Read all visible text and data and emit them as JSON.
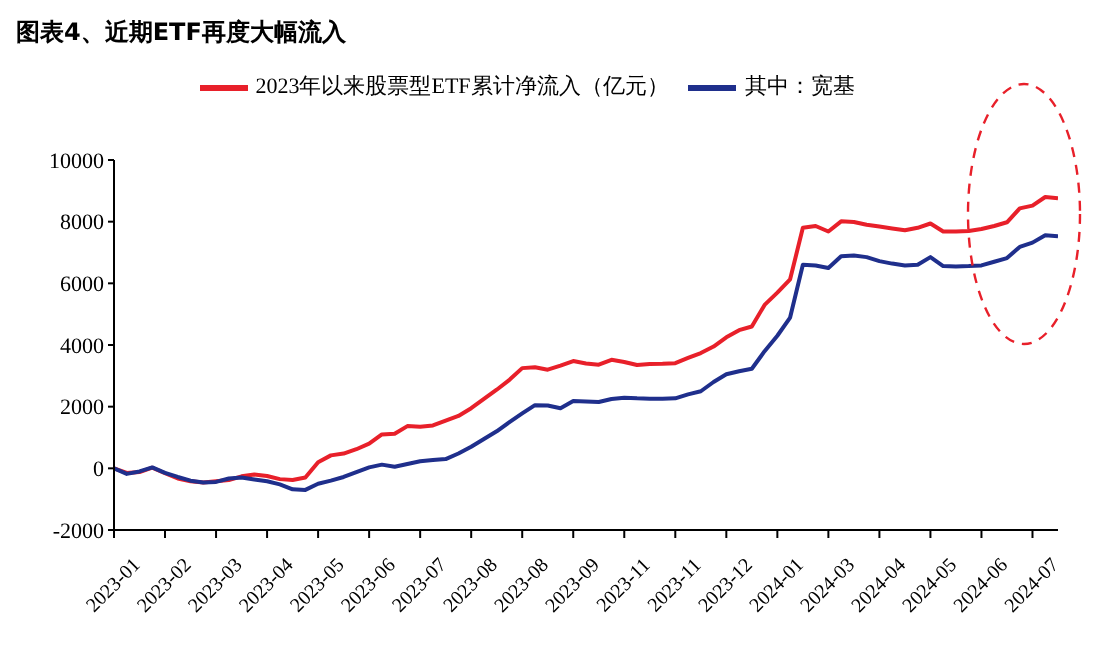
{
  "chart_data": {
    "type": "line",
    "title": "图表4、近期ETF再度大幅流入",
    "categories": [
      "2023-01",
      null,
      null,
      null,
      "2023-02",
      null,
      null,
      null,
      "2023-03",
      null,
      null,
      null,
      "2023-04",
      null,
      null,
      null,
      "2023-05",
      null,
      null,
      null,
      "2023-06",
      null,
      null,
      null,
      "2023-07",
      null,
      null,
      null,
      "2023-08",
      null,
      null,
      null,
      "2023-08",
      null,
      null,
      null,
      "2023-09",
      null,
      null,
      null,
      "2023-11",
      null,
      null,
      null,
      "2023-11",
      null,
      null,
      null,
      "2023-12",
      null,
      null,
      null,
      "2024-01",
      null,
      null,
      null,
      "2024-03",
      null,
      null,
      null,
      "2024-04",
      null,
      null,
      null,
      "2024-05",
      null,
      null,
      null,
      "2024-06",
      null,
      null,
      null,
      "2024-07",
      null,
      null
    ],
    "series": [
      {
        "name": "2023年以来股票型ETF累计净流入（亿元）",
        "color": "#e8202a",
        "values": [
          0,
          -150,
          -120,
          20,
          -160,
          -330,
          -420,
          -460,
          -420,
          -380,
          -260,
          -200,
          -250,
          -350,
          -380,
          -300,
          200,
          420,
          480,
          620,
          800,
          1100,
          1120,
          1370,
          1350,
          1390,
          1550,
          1700,
          1950,
          2250,
          2550,
          2870,
          3250,
          3280,
          3200,
          3330,
          3480,
          3400,
          3360,
          3520,
          3450,
          3350,
          3380,
          3390,
          3410,
          3580,
          3740,
          3950,
          4250,
          4480,
          4600,
          5300,
          5700,
          6130,
          7800,
          7860,
          7680,
          8010,
          7990,
          7900,
          7840,
          7780,
          7720,
          7800,
          7940,
          7680,
          7680,
          7700,
          7760,
          7860,
          7980,
          8430,
          8520,
          8800,
          8760
        ]
      },
      {
        "name": "其中：宽基",
        "color": "#1f2f8c",
        "values": [
          0,
          -180,
          -100,
          30,
          -150,
          -280,
          -400,
          -460,
          -440,
          -330,
          -300,
          -360,
          -420,
          -520,
          -680,
          -700,
          -500,
          -400,
          -280,
          -120,
          30,
          120,
          50,
          140,
          230,
          270,
          300,
          480,
          700,
          950,
          1200,
          1500,
          1780,
          2050,
          2040,
          1950,
          2180,
          2170,
          2150,
          2250,
          2290,
          2270,
          2260,
          2260,
          2270,
          2400,
          2500,
          2800,
          3050,
          3150,
          3230,
          3800,
          4300,
          4890,
          6600,
          6580,
          6500,
          6880,
          6900,
          6850,
          6720,
          6640,
          6580,
          6600,
          6850,
          6560,
          6550,
          6560,
          6580,
          6700,
          6820,
          7180,
          7320,
          7560,
          7530
        ]
      }
    ],
    "ylim": [
      -2000,
      10000
    ],
    "yticks": [
      -2000,
      0,
      2000,
      4000,
      6000,
      8000,
      10000
    ],
    "legend": "top",
    "grid": false,
    "marker": "none",
    "line_style": "solid"
  }
}
